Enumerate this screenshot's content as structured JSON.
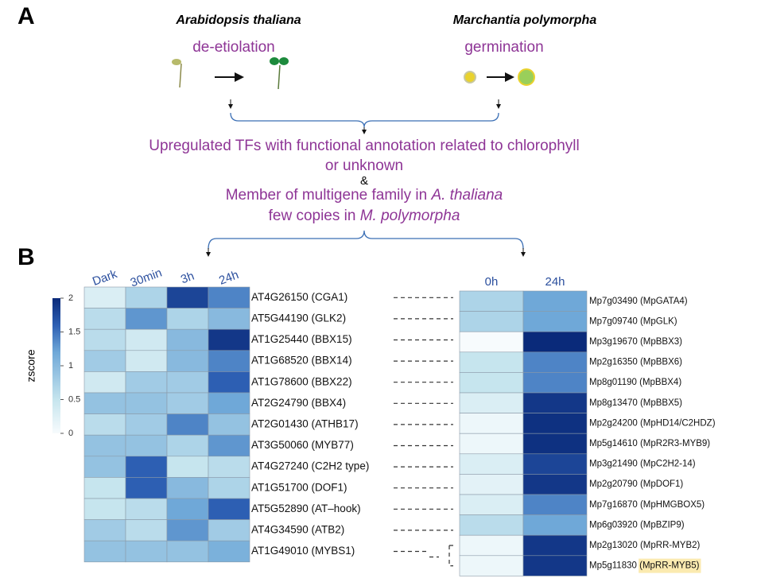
{
  "panel_a": {
    "label": "A",
    "species": [
      {
        "name": "Arabidopsis thaliana",
        "process": "de-etiolation"
      },
      {
        "name": "Marchantia polymorpha",
        "process": "germination"
      }
    ],
    "criteria": {
      "line1": "Upregulated TFs with functional annotation related to chlorophyll",
      "line2": "or unknown",
      "and": "&",
      "line3": "Member of multigene family in ",
      "line3_italic": "A. thaliana",
      "line4": "few copies in ",
      "line4_italic": "M. polymorpha"
    }
  },
  "panel_b_label": "B",
  "chart_data": [
    {
      "type": "heatmap",
      "colorbar_label": "zscore",
      "zlim": [
        0,
        2
      ],
      "zticks": [
        0,
        0.5,
        1,
        1.5,
        2
      ],
      "columns": [
        "Dark",
        "30min",
        "3h",
        "24h"
      ],
      "rows": [
        "AT4G26150 (CGA1)",
        "AT5G44190 (GLK2)",
        "AT1G25440 (BBX15)",
        "AT1G68520 (BBX14)",
        "AT1G78600 (BBX22)",
        "AT2G24790 (BBX4)",
        "AT2G01430 (ATHB17)",
        "AT3G50060 (MYB77)",
        "AT4G27240 (C2H2 type)",
        "AT1G51700 (DOF1)",
        "AT5G52890 (AT–hook)",
        "AT4G34590 (ATB2)",
        "AT1G49010 (MYBS1)"
      ],
      "values": [
        [
          0.3,
          0.7,
          1.8,
          1.4
        ],
        [
          0.6,
          1.3,
          0.7,
          1.0
        ],
        [
          0.6,
          0.4,
          1.0,
          1.9
        ],
        [
          0.8,
          0.4,
          1.0,
          1.4
        ],
        [
          0.4,
          0.8,
          0.8,
          1.6
        ],
        [
          0.9,
          0.9,
          0.8,
          1.2
        ],
        [
          0.6,
          0.8,
          1.4,
          0.9
        ],
        [
          0.9,
          0.9,
          0.7,
          1.3
        ],
        [
          0.9,
          1.6,
          0.5,
          0.6
        ],
        [
          0.5,
          1.6,
          1.0,
          0.7
        ],
        [
          0.5,
          0.6,
          1.2,
          1.6
        ],
        [
          0.8,
          0.6,
          1.3,
          0.8
        ],
        [
          0.9,
          0.9,
          0.9,
          1.1
        ]
      ]
    },
    {
      "type": "heatmap",
      "zlim": [
        0,
        2
      ],
      "columns": [
        "0h",
        "24h"
      ],
      "rows": [
        {
          "id": "Mp7g03490",
          "name": "(MpGATA4)"
        },
        {
          "id": "Mp7g09740",
          "name": "(MpGLK)"
        },
        {
          "id": "Mp3g19670",
          "name": "(MpBBX3)"
        },
        {
          "id": "Mp2g16350",
          "name": "(MpBBX6)"
        },
        {
          "id": "Mp8g01190",
          "name": "(MpBBX4)"
        },
        {
          "id": "Mp8g13470",
          "name": "(MpBBX5)"
        },
        {
          "id": "Mp2g24200",
          "name": "(MpHD14/C2HDZ)"
        },
        {
          "id": "Mp5g14610",
          "name": "(MpR2R3-MYB9)"
        },
        {
          "id": "Mp3g21490",
          "name": "(MpC2H2-14)"
        },
        {
          "id": "Mp2g20790",
          "name": "(MpDOF1)"
        },
        {
          "id": "Mp7g16870",
          "name": "(MpHMGBOX5)"
        },
        {
          "id": "Mp6g03920",
          "name": "(MpBZIP9)"
        },
        {
          "id": "Mp2g13020",
          "name": "(MpRR-MYB2)"
        },
        {
          "id": "Mp5g11830",
          "name": "(MpRR-MYB5)"
        }
      ],
      "highlight_row": 13,
      "values": [
        [
          0.7,
          1.2
        ],
        [
          0.7,
          1.2
        ],
        [
          0.0,
          2.0
        ],
        [
          0.5,
          1.4
        ],
        [
          0.5,
          1.4
        ],
        [
          0.3,
          1.9
        ],
        [
          0.1,
          1.95
        ],
        [
          0.1,
          1.95
        ],
        [
          0.3,
          1.8
        ],
        [
          0.2,
          1.9
        ],
        [
          0.3,
          1.4
        ],
        [
          0.6,
          1.2
        ],
        [
          0.1,
          1.9
        ],
        [
          0.1,
          1.9
        ]
      ]
    }
  ]
}
